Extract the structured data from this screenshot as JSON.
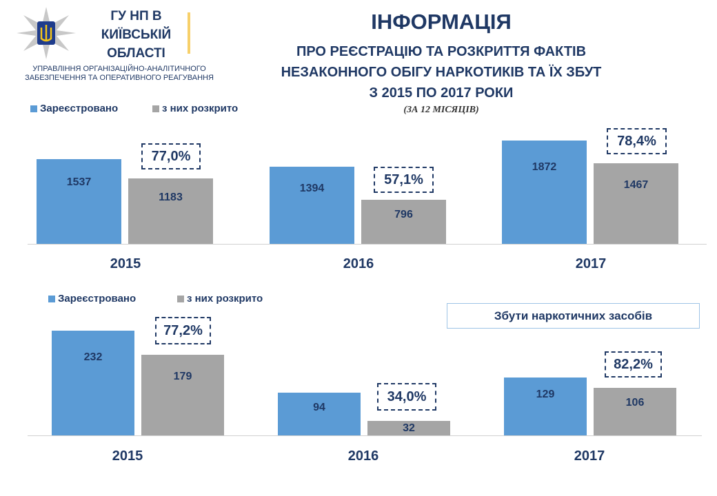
{
  "header": {
    "org_line1": "ГУ НП В",
    "org_line2": "КИЇВСЬКІЙ",
    "org_line3": "ОБЛАСТІ",
    "dept_line1": "УПРАВЛІННЯ ОРГАНІЗАЦІЙНО-АНАЛІТИЧНОГО",
    "dept_line2": "ЗАБЕЗПЕЧЕННЯ ТА ОПЕРАТИВНОГО  РЕАГУВАННЯ",
    "title": "ІНФОРМАЦІЯ",
    "subtitle1": "ПРО РЕЄСТРАЦІЮ ТА РОЗКРИТТЯ ФАКТІВ",
    "subtitle2": "НЕЗАКОННОГО ОБІГУ НАРКОТИКІВ ТА ЇХ ЗБУТ",
    "subtitle3": "З 2015 ПО 2017 РОКИ",
    "period": "(ЗА 12 МІСЯЦІВ)"
  },
  "colors": {
    "registered": "#5b9bd5",
    "solved": "#a5a5a5",
    "text": "#1f3864"
  },
  "chart_data": [
    {
      "type": "bar",
      "title": "",
      "categories": [
        "2015",
        "2016",
        "2017"
      ],
      "legend": [
        "Зареєстровано",
        "з них розкрито"
      ],
      "series": [
        {
          "name": "Зареєстровано",
          "values": [
            1537,
            1394,
            1872
          ]
        },
        {
          "name": "з них розкрито",
          "values": [
            1183,
            796,
            1467
          ]
        }
      ],
      "percent_labels": [
        "77,0%",
        "57,1%",
        "78,4%"
      ],
      "legend_position": "top-left"
    },
    {
      "type": "bar",
      "title": "Збути наркотичних засобів",
      "categories": [
        "2015",
        "2016",
        "2017"
      ],
      "legend": [
        "Зареєстровано",
        "з них розкрито"
      ],
      "series": [
        {
          "name": "Зареєстровано",
          "values": [
            232,
            94,
            129
          ]
        },
        {
          "name": "з них розкрито",
          "values": [
            179,
            32,
            106
          ]
        }
      ],
      "percent_labels": [
        "77,2%",
        "34,0%",
        "82,2%"
      ],
      "legend_position": "top-left"
    }
  ]
}
